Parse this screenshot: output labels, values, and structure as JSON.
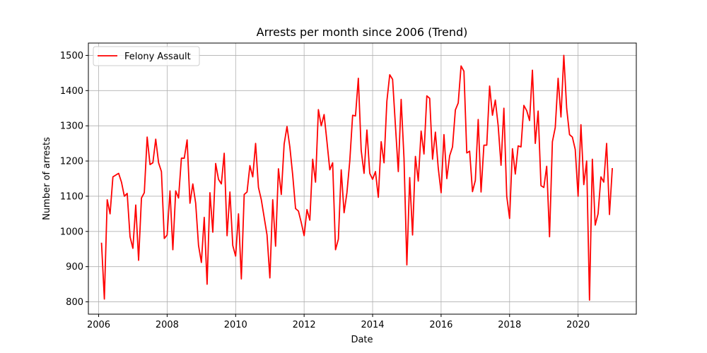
{
  "chart_data": {
    "type": "line",
    "title": "Arrests per month since 2006 (Trend)",
    "xlabel": "Date",
    "ylabel": "Number of arrests",
    "xlim": [
      2005.7,
      2021.7
    ],
    "ylim": [
      765,
      1535
    ],
    "x_ticks": [
      2006,
      2008,
      2010,
      2012,
      2014,
      2016,
      2018,
      2020
    ],
    "x_tick_labels": [
      "2006",
      "2008",
      "2010",
      "2012",
      "2014",
      "2016",
      "2018",
      "2020"
    ],
    "y_ticks": [
      800,
      900,
      1000,
      1100,
      1200,
      1300,
      1400,
      1500
    ],
    "y_tick_labels": [
      "800",
      "900",
      "1000",
      "1100",
      "1200",
      "1300",
      "1400",
      "1500"
    ],
    "grid": true,
    "legend_position": "top-left",
    "x_start": "2006-01",
    "x_step": "1 month",
    "series": [
      {
        "name": "Felony Assault",
        "color": "#ff0000",
        "values": [
          968,
          808,
          1090,
          1050,
          1155,
          1160,
          1165,
          1140,
          1100,
          1108,
          985,
          952,
          1075,
          918,
          1095,
          1110,
          1268,
          1190,
          1195,
          1262,
          1195,
          1170,
          980,
          990,
          1115,
          948,
          1115,
          1095,
          1208,
          1208,
          1260,
          1080,
          1135,
          1080,
          960,
          912,
          1040,
          850,
          1110,
          998,
          1193,
          1148,
          1135,
          1222,
          988,
          1112,
          960,
          930,
          1050,
          865,
          1105,
          1112,
          1187,
          1155,
          1250,
          1125,
          1090,
          1040,
          990,
          868,
          1090,
          958,
          1178,
          1105,
          1248,
          1298,
          1240,
          1160,
          1065,
          1058,
          1025,
          988,
          1062,
          1032,
          1205,
          1140,
          1346,
          1300,
          1332,
          1255,
          1175,
          1195,
          948,
          978,
          1175,
          1053,
          1110,
          1200,
          1330,
          1328,
          1435,
          1230,
          1165,
          1288,
          1165,
          1148,
          1170,
          1097,
          1255,
          1195,
          1370,
          1445,
          1432,
          1300,
          1170,
          1375,
          1208,
          905,
          1153,
          990,
          1213,
          1143,
          1285,
          1220,
          1385,
          1378,
          1205,
          1282,
          1180,
          1110,
          1275,
          1150,
          1215,
          1240,
          1345,
          1365,
          1470,
          1455,
          1223,
          1228,
          1113,
          1145,
          1318,
          1112,
          1245,
          1245,
          1413,
          1330,
          1373,
          1300,
          1188,
          1350,
          1100,
          1037,
          1235,
          1163,
          1243,
          1240,
          1358,
          1343,
          1315,
          1458,
          1250,
          1342,
          1130,
          1125,
          1185,
          985,
          1255,
          1295,
          1435,
          1325,
          1500,
          1350,
          1275,
          1268,
          1233,
          1100,
          1303,
          1133,
          1200,
          805,
          1205,
          1018,
          1050,
          1155,
          1140,
          1250,
          1048,
          1180
        ]
      }
    ]
  }
}
